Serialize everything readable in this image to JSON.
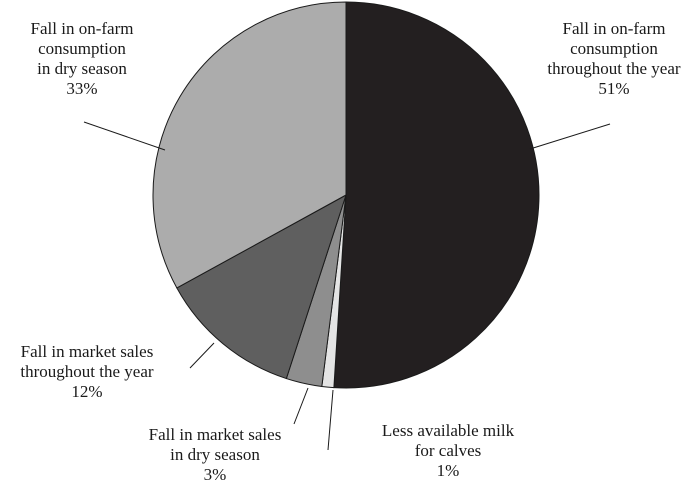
{
  "chart_data": {
    "type": "pie",
    "title": "",
    "slices": [
      {
        "lines": [
          "Fall in on-farm",
          "consumption",
          "throughout the year"
        ],
        "value": 51,
        "pct_label": "51%",
        "color": "#231f20"
      },
      {
        "lines": [
          "Less available milk",
          "for calves"
        ],
        "value": 1,
        "pct_label": "1%",
        "color": "#e4e4e4"
      },
      {
        "lines": [
          "Fall in market sales",
          "in dry season"
        ],
        "value": 3,
        "pct_label": "3%",
        "color": "#8e8e8e"
      },
      {
        "lines": [
          "Fall in market sales",
          "throughout the year"
        ],
        "value": 12,
        "pct_label": "12%",
        "color": "#5f5f5f"
      },
      {
        "lines": [
          "Fall in on-farm",
          "consumption",
          "in dry season"
        ],
        "value": 33,
        "pct_label": "33%",
        "color": "#acacac"
      }
    ]
  }
}
